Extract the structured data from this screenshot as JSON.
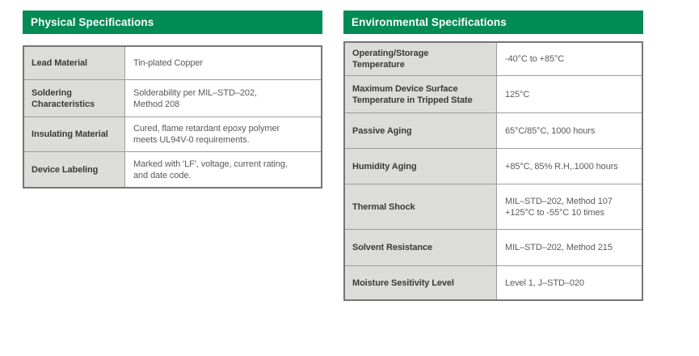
{
  "colors": {
    "header_green": "#018B55",
    "header_text": "#ffffff",
    "label_cell_bg": "#DCDDDA",
    "outer_border": "#767676",
    "inner_border": "#9C9C9C",
    "label_text": "#3A3A3A",
    "value_text": "#595A5C"
  },
  "physical": {
    "title": "Physical Specifications",
    "rows": [
      {
        "label": "Lead Material",
        "value": "Tin-plated Copper"
      },
      {
        "label": "Soldering\nCharacteristics",
        "value": "Solderability per MIL–STD–202,\nMethod 208"
      },
      {
        "label": "Insulating Material",
        "value": "Cured, flame retardant epoxy polymer\nmeets UL94V-0 requirements."
      },
      {
        "label": "Device Labeling",
        "value": "Marked with 'LF', voltage, current rating,\nand date code."
      }
    ]
  },
  "environmental": {
    "title": "Environmental Specifications",
    "rows": [
      {
        "label": "Operating/Storage\nTemperature",
        "value": "-40°C to +85°C"
      },
      {
        "label": "Maximum Device Surface\nTemperature in Tripped State",
        "value": "125°C"
      },
      {
        "label": "Passive Aging",
        "value": "65°C/85°C, 1000 hours"
      },
      {
        "label": "Humidity Aging",
        "value": "+85°C, 85% R.H,.1000 hours"
      },
      {
        "label": "Thermal Shock",
        "value": "MIL–STD–202, Method 107\n+125°C to -55°C 10 times"
      },
      {
        "label": "Solvent Resistance",
        "value": "MIL–STD–202, Method 215"
      },
      {
        "label": "Moisture Sesitivity Level",
        "value": "Level 1, J–STD–020"
      }
    ]
  }
}
